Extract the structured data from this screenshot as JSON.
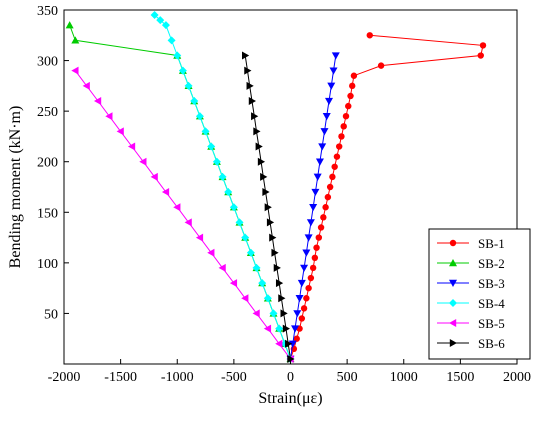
{
  "chart_data": {
    "type": "line",
    "title": "",
    "xlabel": "Strain(με)",
    "ylabel": "Bending moment (kN·m)",
    "xlim": [
      -2000,
      2000
    ],
    "ylim": [
      0,
      350
    ],
    "xticks": [
      "-2000",
      "-1500",
      "-1000",
      "-500",
      "0",
      "500",
      "1000",
      "1500",
      "2000"
    ],
    "yticks": [
      "50",
      "100",
      "150",
      "200",
      "250",
      "300",
      "350"
    ],
    "legend_position": "bottom-right",
    "grid": false,
    "series": [
      {
        "name": "SB-1",
        "color": "#ff0000",
        "marker": "circle",
        "x": [
          0,
          30,
          55,
          80,
          100,
          120,
          140,
          160,
          180,
          200,
          215,
          230,
          250,
          270,
          290,
          310,
          330,
          350,
          370,
          390,
          410,
          430,
          450,
          470,
          490,
          510,
          530,
          545,
          560,
          800,
          1680,
          1700,
          700
        ],
        "y": [
          5,
          15,
          25,
          35,
          45,
          55,
          65,
          75,
          85,
          95,
          105,
          115,
          125,
          135,
          145,
          155,
          165,
          175,
          185,
          195,
          205,
          215,
          225,
          235,
          245,
          255,
          265,
          275,
          285,
          295,
          305,
          315,
          325
        ]
      },
      {
        "name": "SB-2",
        "color": "#00cc00",
        "marker": "triangle-up",
        "x": [
          0,
          -50,
          -100,
          -150,
          -200,
          -250,
          -300,
          -350,
          -400,
          -450,
          -500,
          -550,
          -600,
          -650,
          -700,
          -750,
          -800,
          -850,
          -900,
          -950,
          -1000,
          -1900,
          -1950
        ],
        "y": [
          5,
          20,
          35,
          50,
          65,
          80,
          95,
          110,
          125,
          140,
          155,
          170,
          185,
          200,
          215,
          230,
          245,
          260,
          275,
          290,
          305,
          320,
          335
        ]
      },
      {
        "name": "SB-3",
        "color": "#0000ff",
        "marker": "triangle-down",
        "x": [
          0,
          20,
          40,
          60,
          80,
          100,
          120,
          140,
          160,
          180,
          200,
          220,
          240,
          260,
          280,
          300,
          320,
          340,
          360,
          380,
          400
        ],
        "y": [
          5,
          20,
          35,
          50,
          65,
          80,
          95,
          110,
          125,
          140,
          155,
          170,
          185,
          200,
          215,
          230,
          245,
          260,
          275,
          290,
          305
        ]
      },
      {
        "name": "SB-4",
        "color": "#00ffff",
        "marker": "diamond",
        "x": [
          0,
          -50,
          -100,
          -150,
          -200,
          -250,
          -300,
          -350,
          -400,
          -450,
          -500,
          -550,
          -600,
          -650,
          -700,
          -750,
          -800,
          -850,
          -900,
          -950,
          -1000,
          -1050,
          -1100,
          -1150,
          -1200
        ],
        "y": [
          5,
          20,
          35,
          50,
          65,
          80,
          95,
          110,
          125,
          140,
          155,
          170,
          185,
          200,
          215,
          230,
          245,
          260,
          275,
          290,
          305,
          320,
          335,
          340,
          345
        ]
      },
      {
        "name": "SB-5",
        "color": "#ff00ff",
        "marker": "triangle-left",
        "x": [
          0,
          -100,
          -200,
          -300,
          -400,
          -500,
          -600,
          -700,
          -800,
          -900,
          -1000,
          -1100,
          -1200,
          -1300,
          -1400,
          -1500,
          -1600,
          -1700,
          -1800,
          -1900
        ],
        "y": [
          5,
          20,
          35,
          50,
          65,
          80,
          95,
          110,
          125,
          140,
          155,
          170,
          185,
          200,
          215,
          230,
          245,
          260,
          275,
          290
        ]
      },
      {
        "name": "SB-6",
        "color": "#000000",
        "marker": "triangle-right",
        "x": [
          0,
          -20,
          -40,
          -60,
          -80,
          -100,
          -120,
          -140,
          -160,
          -180,
          -200,
          -220,
          -240,
          -260,
          -280,
          -300,
          -320,
          -340,
          -360,
          -380,
          -400
        ],
        "y": [
          5,
          20,
          35,
          50,
          65,
          80,
          95,
          110,
          125,
          140,
          155,
          170,
          185,
          200,
          215,
          230,
          245,
          260,
          275,
          290,
          305
        ]
      }
    ]
  }
}
